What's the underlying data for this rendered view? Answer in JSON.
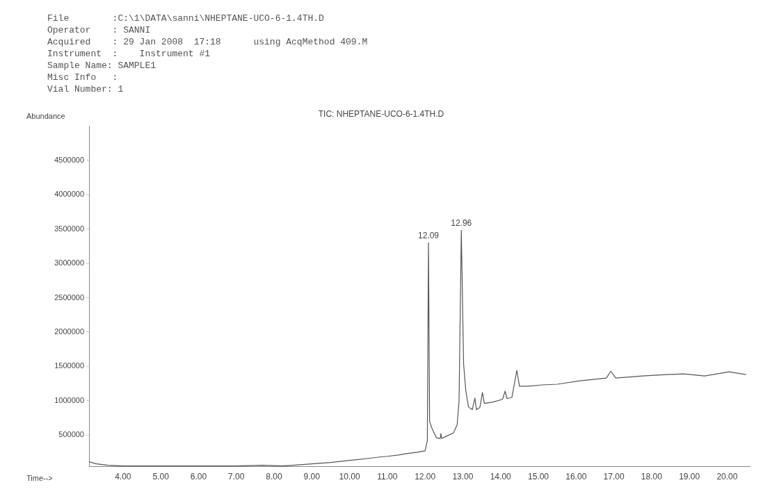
{
  "chart_data": {
    "type": "line",
    "title": "TIC: NHEPTANE-UCO-6-1.4TH.D",
    "xlabel": "Time-->",
    "ylabel": "Abundance",
    "annotations": [
      "File        :C:\\1\\DATA\\sanni\\NHEPTANE-UCO-6-1.4TH.D",
      "Operator    : SANNI",
      "Acquired    : 29 Jan 2008  17:18      using AcqMethod 409.M",
      "Instrument  :    Instrument #1",
      "Sample Name: SAMPLE1",
      "Misc Info   :",
      "Vial Number: 1",
      {
        "text": "12.09",
        "x": 12.09,
        "y": 3300000
      },
      {
        "text": "12.96",
        "x": 12.96,
        "y": 3480000
      }
    ],
    "x": [
      3.1,
      3.3,
      3.6,
      4.0,
      5.0,
      6.0,
      6.5,
      7.0,
      7.7,
      8.2,
      8.5,
      9.0,
      9.5,
      10.0,
      10.5,
      10.8,
      11.0,
      11.3,
      11.5,
      11.8,
      12.0,
      12.06,
      12.09,
      12.12,
      12.18,
      12.3,
      12.4,
      12.42,
      12.44,
      12.55,
      12.75,
      12.85,
      12.9,
      12.96,
      13.02,
      13.08,
      13.15,
      13.25,
      13.32,
      13.36,
      13.45,
      13.52,
      13.57,
      13.8,
      14.05,
      14.12,
      14.17,
      14.3,
      14.43,
      14.5,
      14.7,
      15.1,
      15.5,
      16.1,
      16.8,
      16.92,
      17.05,
      17.75,
      18.4,
      18.85,
      19.4,
      20.05,
      20.5
    ],
    "series": [
      {
        "color": "#555555",
        "values": [
          110000,
          80000,
          60000,
          50000,
          50000,
          50000,
          50000,
          50000,
          60000,
          50000,
          60000,
          80000,
          100000,
          130000,
          160000,
          180000,
          190000,
          210000,
          230000,
          250000,
          270000,
          420000,
          3300000,
          700000,
          600000,
          460000,
          450000,
          520000,
          450000,
          480000,
          530000,
          650000,
          1000000,
          3480000,
          1540000,
          1140000,
          910000,
          870000,
          1040000,
          870000,
          900000,
          1120000,
          960000,
          980000,
          1020000,
          1140000,
          1030000,
          1050000,
          1440000,
          1210000,
          1210000,
          1230000,
          1240000,
          1290000,
          1330000,
          1430000,
          1330000,
          1360000,
          1380000,
          1390000,
          1360000,
          1420000,
          1380000
        ]
      }
    ],
    "xlim": [
      3.1,
      20.6
    ],
    "ylim": [
      40000,
      5000000
    ],
    "xticks": [
      {
        "value": 4,
        "label": "4.00"
      },
      {
        "value": 5,
        "label": "5.00"
      },
      {
        "value": 6,
        "label": "6.00"
      },
      {
        "value": 7,
        "label": "7.00"
      },
      {
        "value": 8,
        "label": "8.00"
      },
      {
        "value": 9,
        "label": "9.00"
      },
      {
        "value": 10,
        "label": "10.00"
      },
      {
        "value": 11,
        "label": "11.00"
      },
      {
        "value": 12,
        "label": "12.00"
      },
      {
        "value": 13,
        "label": "13.00"
      },
      {
        "value": 14,
        "label": "14.00"
      },
      {
        "value": 15,
        "label": "15.00"
      },
      {
        "value": 16,
        "label": "16.00"
      },
      {
        "value": 17,
        "label": "17.00"
      },
      {
        "value": 18,
        "label": "18.00"
      },
      {
        "value": 19,
        "label": "19.00"
      },
      {
        "value": 20,
        "label": "20.00"
      }
    ],
    "yticks": [
      500000,
      1000000,
      1500000,
      2000000,
      2500000,
      3000000,
      3500000,
      4000000,
      4500000
    ],
    "grid": false,
    "legend": false,
    "marker": "none",
    "line_style": "solid"
  }
}
